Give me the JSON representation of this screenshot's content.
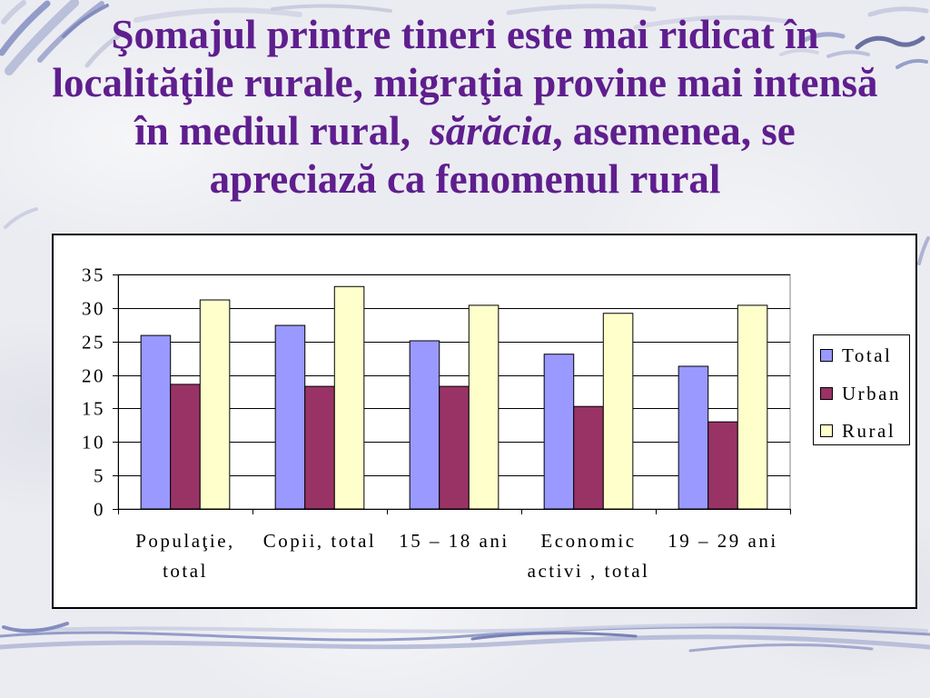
{
  "slide": {
    "title": {
      "line1": "Şomajul printre tineri este mai ridicat în",
      "line2": "localităţile rurale, migraţia provine mai intensă",
      "line3_before": "în mediul rural,",
      "line3_italic": "sărăcia",
      "line3_after": ", asemenea, se",
      "line4": "apreciază ca fenomenul rural"
    },
    "colors": {
      "title": "#5F1E8E",
      "background": "#EBECF1"
    }
  },
  "chart_data": {
    "type": "bar",
    "categories": [
      "Populaţie, total",
      "Copii, total",
      "15 – 18 ani",
      "Economic activi , total",
      "19 – 29 ani"
    ],
    "series": [
      {
        "name": "Total",
        "color": "#9999FF",
        "values": [
          25.9,
          27.4,
          25.1,
          23.1,
          21.3
        ]
      },
      {
        "name": "Urban",
        "color": "#993366",
        "values": [
          18.6,
          18.3,
          18.3,
          15.3,
          13.0
        ]
      },
      {
        "name": "Rural",
        "color": "#FFFFCC",
        "values": [
          31.2,
          33.2,
          30.4,
          29.2,
          30.4
        ]
      }
    ],
    "ylim": [
      0,
      35
    ],
    "yticks": [
      0,
      5,
      10,
      15,
      20,
      25,
      30,
      35
    ],
    "grid": true,
    "legend": "right"
  }
}
